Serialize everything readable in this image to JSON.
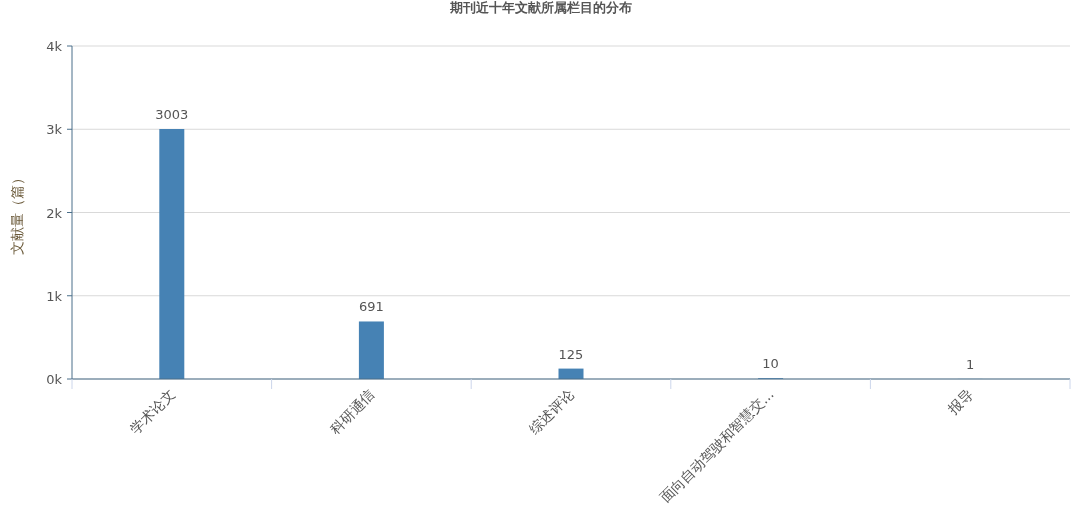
{
  "chart_data": {
    "type": "bar",
    "title": "期刊近十年文献所属栏目的分布",
    "ylabel": "文献量（篇）",
    "categories": [
      "学术论文",
      "科研通信",
      "综述评论",
      "面向自动驾驶和智慧交...",
      "报导"
    ],
    "values": [
      3003,
      691,
      125,
      10,
      1
    ],
    "color": "#4682b4",
    "ylim": [
      0,
      4000
    ],
    "yticks": [
      {
        "value": 0,
        "label": "0k"
      },
      {
        "value": 1000,
        "label": "1k"
      },
      {
        "value": 2000,
        "label": "2k"
      },
      {
        "value": 3000,
        "label": "3k"
      },
      {
        "value": 4000,
        "label": "4k"
      }
    ],
    "grid": "y",
    "data_labels": true
  }
}
